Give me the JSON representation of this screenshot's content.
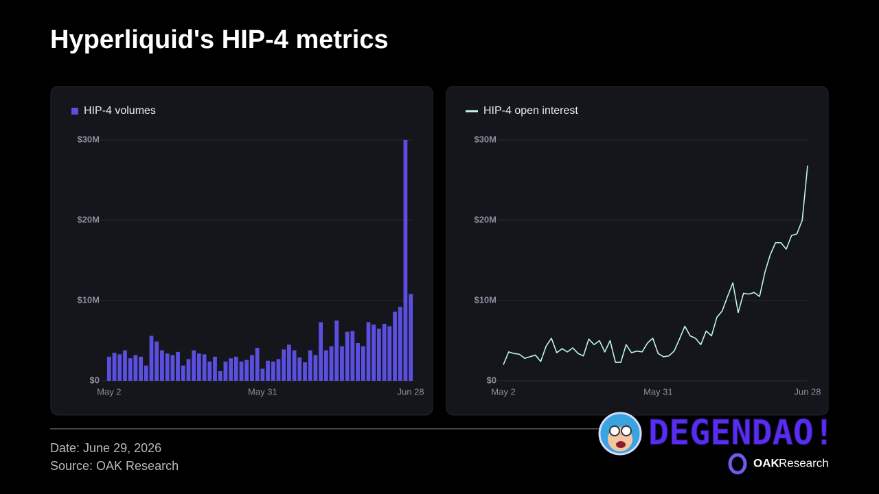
{
  "header": {
    "title": "Hyperliquid's HIP-4 metrics"
  },
  "chart_data": [
    {
      "type": "bar",
      "categories": [
        "May 2",
        null,
        null,
        null,
        null,
        null,
        null,
        null,
        null,
        null,
        null,
        null,
        null,
        null,
        null,
        null,
        null,
        null,
        null,
        null,
        null,
        null,
        null,
        null,
        null,
        null,
        null,
        null,
        null,
        "May 31",
        null,
        null,
        null,
        null,
        null,
        null,
        null,
        null,
        null,
        null,
        null,
        null,
        null,
        null,
        null,
        null,
        null,
        null,
        null,
        null,
        null,
        null,
        null,
        null,
        null,
        null,
        null,
        "Jun 28"
      ],
      "series": [
        {
          "name": "HIP-4 volumes",
          "color": "#5b4fe0",
          "values": [
            3.0,
            3.5,
            3.3,
            3.8,
            2.8,
            3.2,
            3.0,
            1.9,
            5.6,
            4.9,
            3.8,
            3.4,
            3.2,
            3.6,
            1.9,
            2.7,
            3.8,
            3.4,
            3.3,
            2.4,
            3.0,
            1.2,
            2.4,
            2.8,
            3.0,
            2.4,
            2.6,
            3.2,
            4.1,
            1.5,
            2.5,
            2.4,
            2.7,
            3.9,
            4.5,
            3.8,
            2.9,
            2.3,
            3.8,
            3.2,
            7.3,
            3.8,
            4.3,
            7.5,
            4.3,
            6.1,
            6.2,
            4.7,
            4.3,
            7.3,
            7.0,
            6.5,
            7.1,
            6.8,
            8.6,
            9.2,
            30.0,
            10.8
          ]
        }
      ],
      "ylim": [
        0,
        30
      ],
      "yticks": [
        {
          "value": 0,
          "label": "$0"
        },
        {
          "value": 10,
          "label": "$10M"
        },
        {
          "value": 20,
          "label": "$20M"
        },
        {
          "value": 30,
          "label": "$30M"
        }
      ],
      "grid": true
    },
    {
      "type": "line",
      "categories": [
        "May 2",
        null,
        null,
        null,
        null,
        null,
        null,
        null,
        null,
        null,
        null,
        null,
        null,
        null,
        null,
        null,
        null,
        null,
        null,
        null,
        null,
        null,
        null,
        null,
        null,
        null,
        null,
        null,
        null,
        "May 31",
        null,
        null,
        null,
        null,
        null,
        null,
        null,
        null,
        null,
        null,
        null,
        null,
        null,
        null,
        null,
        null,
        null,
        null,
        null,
        null,
        null,
        null,
        null,
        null,
        null,
        null,
        null,
        "Jun 28"
      ],
      "series": [
        {
          "name": "HIP-4 open interest",
          "color": "#bff5ea",
          "values": [
            2.0,
            3.6,
            3.4,
            3.3,
            2.8,
            3.0,
            3.2,
            2.4,
            4.3,
            5.3,
            3.5,
            4.0,
            3.6,
            4.1,
            3.4,
            3.1,
            5.2,
            4.5,
            5.0,
            3.6,
            5.0,
            2.3,
            2.3,
            4.5,
            3.5,
            3.7,
            3.6,
            4.7,
            5.3,
            3.4,
            3.0,
            3.1,
            3.7,
            5.2,
            6.8,
            5.6,
            5.3,
            4.5,
            6.2,
            5.6,
            7.9,
            8.7,
            10.5,
            12.2,
            8.5,
            10.9,
            10.8,
            11.0,
            10.5,
            13.5,
            15.7,
            17.2,
            17.2,
            16.4,
            18.1,
            18.3,
            20.0,
            26.8
          ]
        }
      ],
      "ylim": [
        0,
        30
      ],
      "yticks": [
        {
          "value": 0,
          "label": "$0"
        },
        {
          "value": 10,
          "label": "$10M"
        },
        {
          "value": 20,
          "label": "$20M"
        },
        {
          "value": 30,
          "label": "$30M"
        }
      ],
      "grid": true
    }
  ],
  "footer": {
    "date": "Date: June 29, 2026",
    "source": "Source: OAK Research"
  },
  "branding": {
    "degendao": "DEGENDAO!",
    "oak": "OAK",
    "research": "Research"
  }
}
